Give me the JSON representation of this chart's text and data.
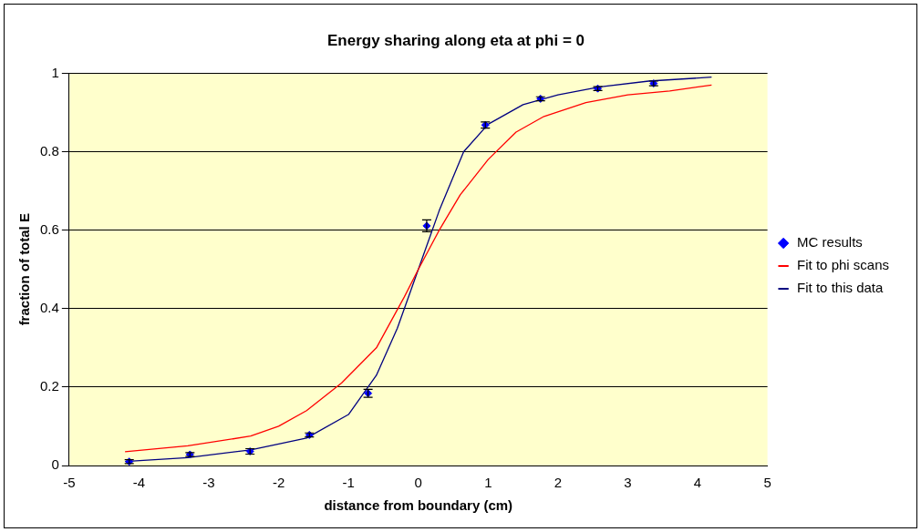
{
  "chart_data": {
    "type": "scatter",
    "title": "Energy sharing along eta at phi = 0",
    "xlabel": "distance from boundary (cm)",
    "ylabel": "fraction of total E",
    "xlim": [
      -5,
      5
    ],
    "xticks": [
      -5,
      -4,
      -3,
      -2,
      -1,
      0,
      1,
      2,
      3,
      4,
      5
    ],
    "ylim": [
      0,
      1
    ],
    "yticks": [
      0,
      0.2,
      0.4,
      0.6,
      0.8,
      1
    ],
    "grid": "y",
    "legend": "right",
    "line_style": "solid",
    "series": [
      {
        "name": "MC results",
        "marker": "diamond",
        "color": "#0000ff",
        "x": [
          -4.14,
          -3.27,
          -2.41,
          -1.56,
          -0.72,
          0.12,
          0.96,
          1.75,
          2.57,
          3.37
        ],
        "values": [
          0.01,
          0.028,
          0.036,
          0.078,
          0.184,
          0.611,
          0.868,
          0.935,
          0.961,
          0.974
        ],
        "errors": [
          0.005,
          0.005,
          0.007,
          0.005,
          0.01,
          0.015,
          0.008,
          0.005,
          0.005,
          0.006
        ]
      },
      {
        "name": "Fit to phi scans",
        "type": "line",
        "marker": "none",
        "color": "#ff0000",
        "x": [
          -4.2,
          -3.3,
          -2.4,
          -2,
          -1.6,
          -1.1,
          -0.6,
          -0.2,
          0,
          0.3,
          0.6,
          1,
          1.4,
          1.8,
          2.4,
          3,
          3.6,
          4.2
        ],
        "values": [
          0.035,
          0.05,
          0.075,
          0.1,
          0.14,
          0.21,
          0.3,
          0.43,
          0.5,
          0.6,
          0.69,
          0.78,
          0.85,
          0.89,
          0.925,
          0.945,
          0.955,
          0.97
        ]
      },
      {
        "name": "Fit to this data",
        "type": "line",
        "marker": "none",
        "color": "#000080",
        "x": [
          -4.2,
          -3.3,
          -2.4,
          -1.6,
          -1,
          -0.6,
          -0.3,
          0,
          0.3,
          0.65,
          1,
          1.5,
          2,
          2.6,
          3.3,
          4.2
        ],
        "values": [
          0.01,
          0.02,
          0.04,
          0.07,
          0.13,
          0.23,
          0.35,
          0.5,
          0.65,
          0.8,
          0.87,
          0.92,
          0.945,
          0.965,
          0.98,
          0.99
        ]
      }
    ]
  }
}
